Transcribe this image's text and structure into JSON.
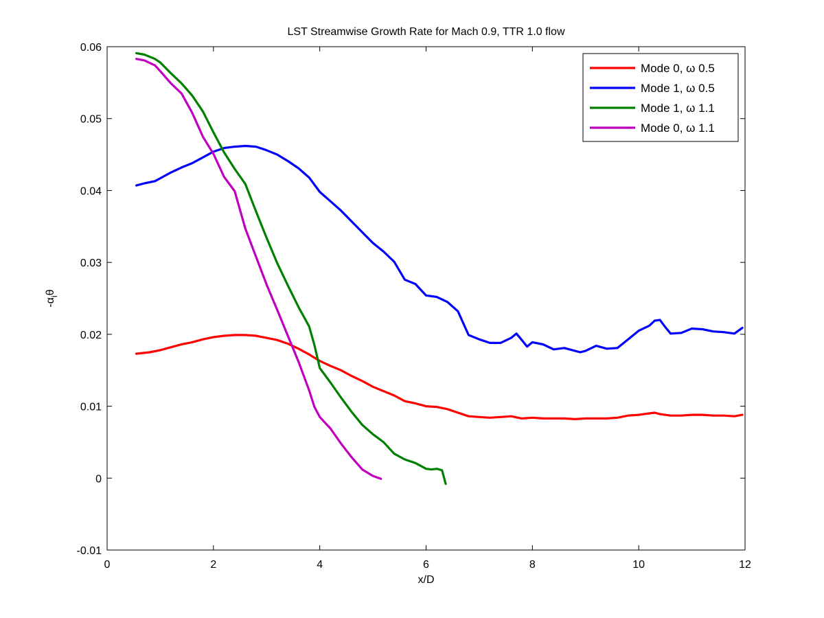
{
  "chart_data": {
    "type": "line",
    "title": "LST Streamwise Growth Rate for Mach 0.9, TTR 1.0 flow",
    "xlabel": "x/D",
    "ylabel": {
      "prefix": "-α",
      "sub": "i",
      "suffix": "θ"
    },
    "xlim": [
      0,
      12
    ],
    "ylim": [
      -0.01,
      0.06
    ],
    "xticks": [
      0,
      2,
      4,
      6,
      8,
      10,
      12
    ],
    "yticks": [
      -0.01,
      0,
      0.01,
      0.02,
      0.03,
      0.04,
      0.05,
      0.06
    ],
    "xtick_labels": [
      "0",
      "2",
      "4",
      "6",
      "8",
      "10",
      "12"
    ],
    "ytick_labels": [
      "-0.01",
      "0",
      "0.01",
      "0.02",
      "0.03",
      "0.04",
      "0.05",
      "0.06"
    ],
    "grid": false,
    "legend_position": "top-right",
    "series": [
      {
        "name": "Mode 0, ω 0.5",
        "color": "#ff0000",
        "x": [
          0.55,
          0.8,
          1.0,
          1.2,
          1.4,
          1.6,
          1.8,
          2.0,
          2.2,
          2.4,
          2.6,
          2.8,
          3.0,
          3.2,
          3.4,
          3.6,
          3.8,
          4.0,
          4.2,
          4.4,
          4.6,
          4.8,
          5.0,
          5.2,
          5.4,
          5.6,
          5.8,
          6.0,
          6.2,
          6.4,
          6.6,
          6.8,
          7.0,
          7.2,
          7.4,
          7.6,
          7.8,
          8.0,
          8.2,
          8.4,
          8.6,
          8.8,
          9.0,
          9.2,
          9.4,
          9.6,
          9.8,
          10.0,
          10.2,
          10.3,
          10.4,
          10.6,
          10.8,
          11.0,
          11.2,
          11.4,
          11.6,
          11.8,
          11.95
        ],
        "y": [
          0.0173,
          0.0175,
          0.0178,
          0.0182,
          0.0186,
          0.0189,
          0.0193,
          0.0196,
          0.0198,
          0.0199,
          0.0199,
          0.0198,
          0.0195,
          0.0192,
          0.0187,
          0.018,
          0.0172,
          0.0163,
          0.0156,
          0.015,
          0.0142,
          0.0135,
          0.0127,
          0.0121,
          0.0115,
          0.0107,
          0.0104,
          0.01,
          0.0099,
          0.0096,
          0.0091,
          0.0086,
          0.0085,
          0.0084,
          0.0085,
          0.0086,
          0.0083,
          0.0084,
          0.0083,
          0.0083,
          0.0083,
          0.0082,
          0.0083,
          0.0083,
          0.0083,
          0.0084,
          0.0087,
          0.0088,
          0.009,
          0.0091,
          0.0089,
          0.0087,
          0.0087,
          0.0088,
          0.0088,
          0.0087,
          0.0087,
          0.0086,
          0.0088
        ]
      },
      {
        "name": "Mode 1, ω 0.5",
        "color": "#0000ff",
        "x": [
          0.55,
          0.7,
          0.9,
          1.0,
          1.2,
          1.4,
          1.6,
          1.8,
          2.0,
          2.2,
          2.4,
          2.6,
          2.8,
          3.0,
          3.2,
          3.4,
          3.6,
          3.8,
          4.0,
          4.2,
          4.4,
          4.6,
          4.8,
          5.0,
          5.2,
          5.4,
          5.6,
          5.8,
          6.0,
          6.2,
          6.4,
          6.6,
          6.8,
          7.0,
          7.2,
          7.4,
          7.6,
          7.7,
          7.8,
          7.9,
          8.0,
          8.2,
          8.4,
          8.6,
          8.8,
          8.9,
          9.0,
          9.2,
          9.4,
          9.6,
          9.8,
          10.0,
          10.2,
          10.3,
          10.4,
          10.5,
          10.6,
          10.8,
          11.0,
          11.2,
          11.4,
          11.6,
          11.8,
          11.95
        ],
        "y": [
          0.0407,
          0.041,
          0.0413,
          0.0417,
          0.0425,
          0.0432,
          0.0438,
          0.0446,
          0.0454,
          0.0459,
          0.0461,
          0.0462,
          0.0461,
          0.0456,
          0.045,
          0.0441,
          0.0431,
          0.0418,
          0.0398,
          0.0385,
          0.0372,
          0.0357,
          0.0342,
          0.0327,
          0.0315,
          0.0301,
          0.0276,
          0.027,
          0.0254,
          0.0252,
          0.0245,
          0.0232,
          0.0199,
          0.0193,
          0.0188,
          0.0188,
          0.0195,
          0.0201,
          0.0192,
          0.0183,
          0.0189,
          0.0186,
          0.0179,
          0.0181,
          0.0177,
          0.0175,
          0.0177,
          0.0184,
          0.018,
          0.0181,
          0.0193,
          0.0205,
          0.0212,
          0.0219,
          0.022,
          0.021,
          0.0201,
          0.0202,
          0.0208,
          0.0207,
          0.0204,
          0.0203,
          0.0201,
          0.0209
        ]
      },
      {
        "name": "Mode 1, ω 1.1",
        "color": "#008000",
        "x": [
          0.55,
          0.7,
          0.9,
          1.0,
          1.2,
          1.4,
          1.6,
          1.8,
          2.0,
          2.2,
          2.4,
          2.6,
          2.8,
          3.0,
          3.2,
          3.4,
          3.6,
          3.8,
          3.9,
          4.0,
          4.2,
          4.4,
          4.6,
          4.8,
          5.0,
          5.2,
          5.4,
          5.6,
          5.8,
          6.0,
          6.1,
          6.2,
          6.3,
          6.37
        ],
        "y": [
          0.0591,
          0.0589,
          0.0583,
          0.0578,
          0.0563,
          0.0549,
          0.0532,
          0.051,
          0.0481,
          0.0453,
          0.043,
          0.0409,
          0.0371,
          0.0334,
          0.0299,
          0.0268,
          0.0238,
          0.0211,
          0.0185,
          0.0153,
          0.0133,
          0.0112,
          0.0092,
          0.0074,
          0.0061,
          0.005,
          0.0034,
          0.0026,
          0.0021,
          0.0013,
          0.0012,
          0.0013,
          0.0011,
          -0.0008
        ]
      },
      {
        "name": "Mode 0, ω 1.1",
        "color": "#bf00bf",
        "x": [
          0.55,
          0.7,
          0.9,
          1.0,
          1.2,
          1.4,
          1.6,
          1.8,
          2.0,
          2.2,
          2.4,
          2.6,
          2.8,
          3.0,
          3.2,
          3.4,
          3.6,
          3.8,
          3.9,
          4.0,
          4.2,
          4.4,
          4.6,
          4.8,
          5.0,
          5.15
        ],
        "y": [
          0.0583,
          0.0581,
          0.0574,
          0.0566,
          0.0549,
          0.0535,
          0.0508,
          0.0475,
          0.0451,
          0.0419,
          0.0399,
          0.0347,
          0.0308,
          0.0269,
          0.0234,
          0.0198,
          0.0162,
          0.0122,
          0.0099,
          0.0085,
          0.0069,
          0.0048,
          0.0029,
          0.0012,
          0.0003,
          -0.0001
        ]
      }
    ]
  }
}
